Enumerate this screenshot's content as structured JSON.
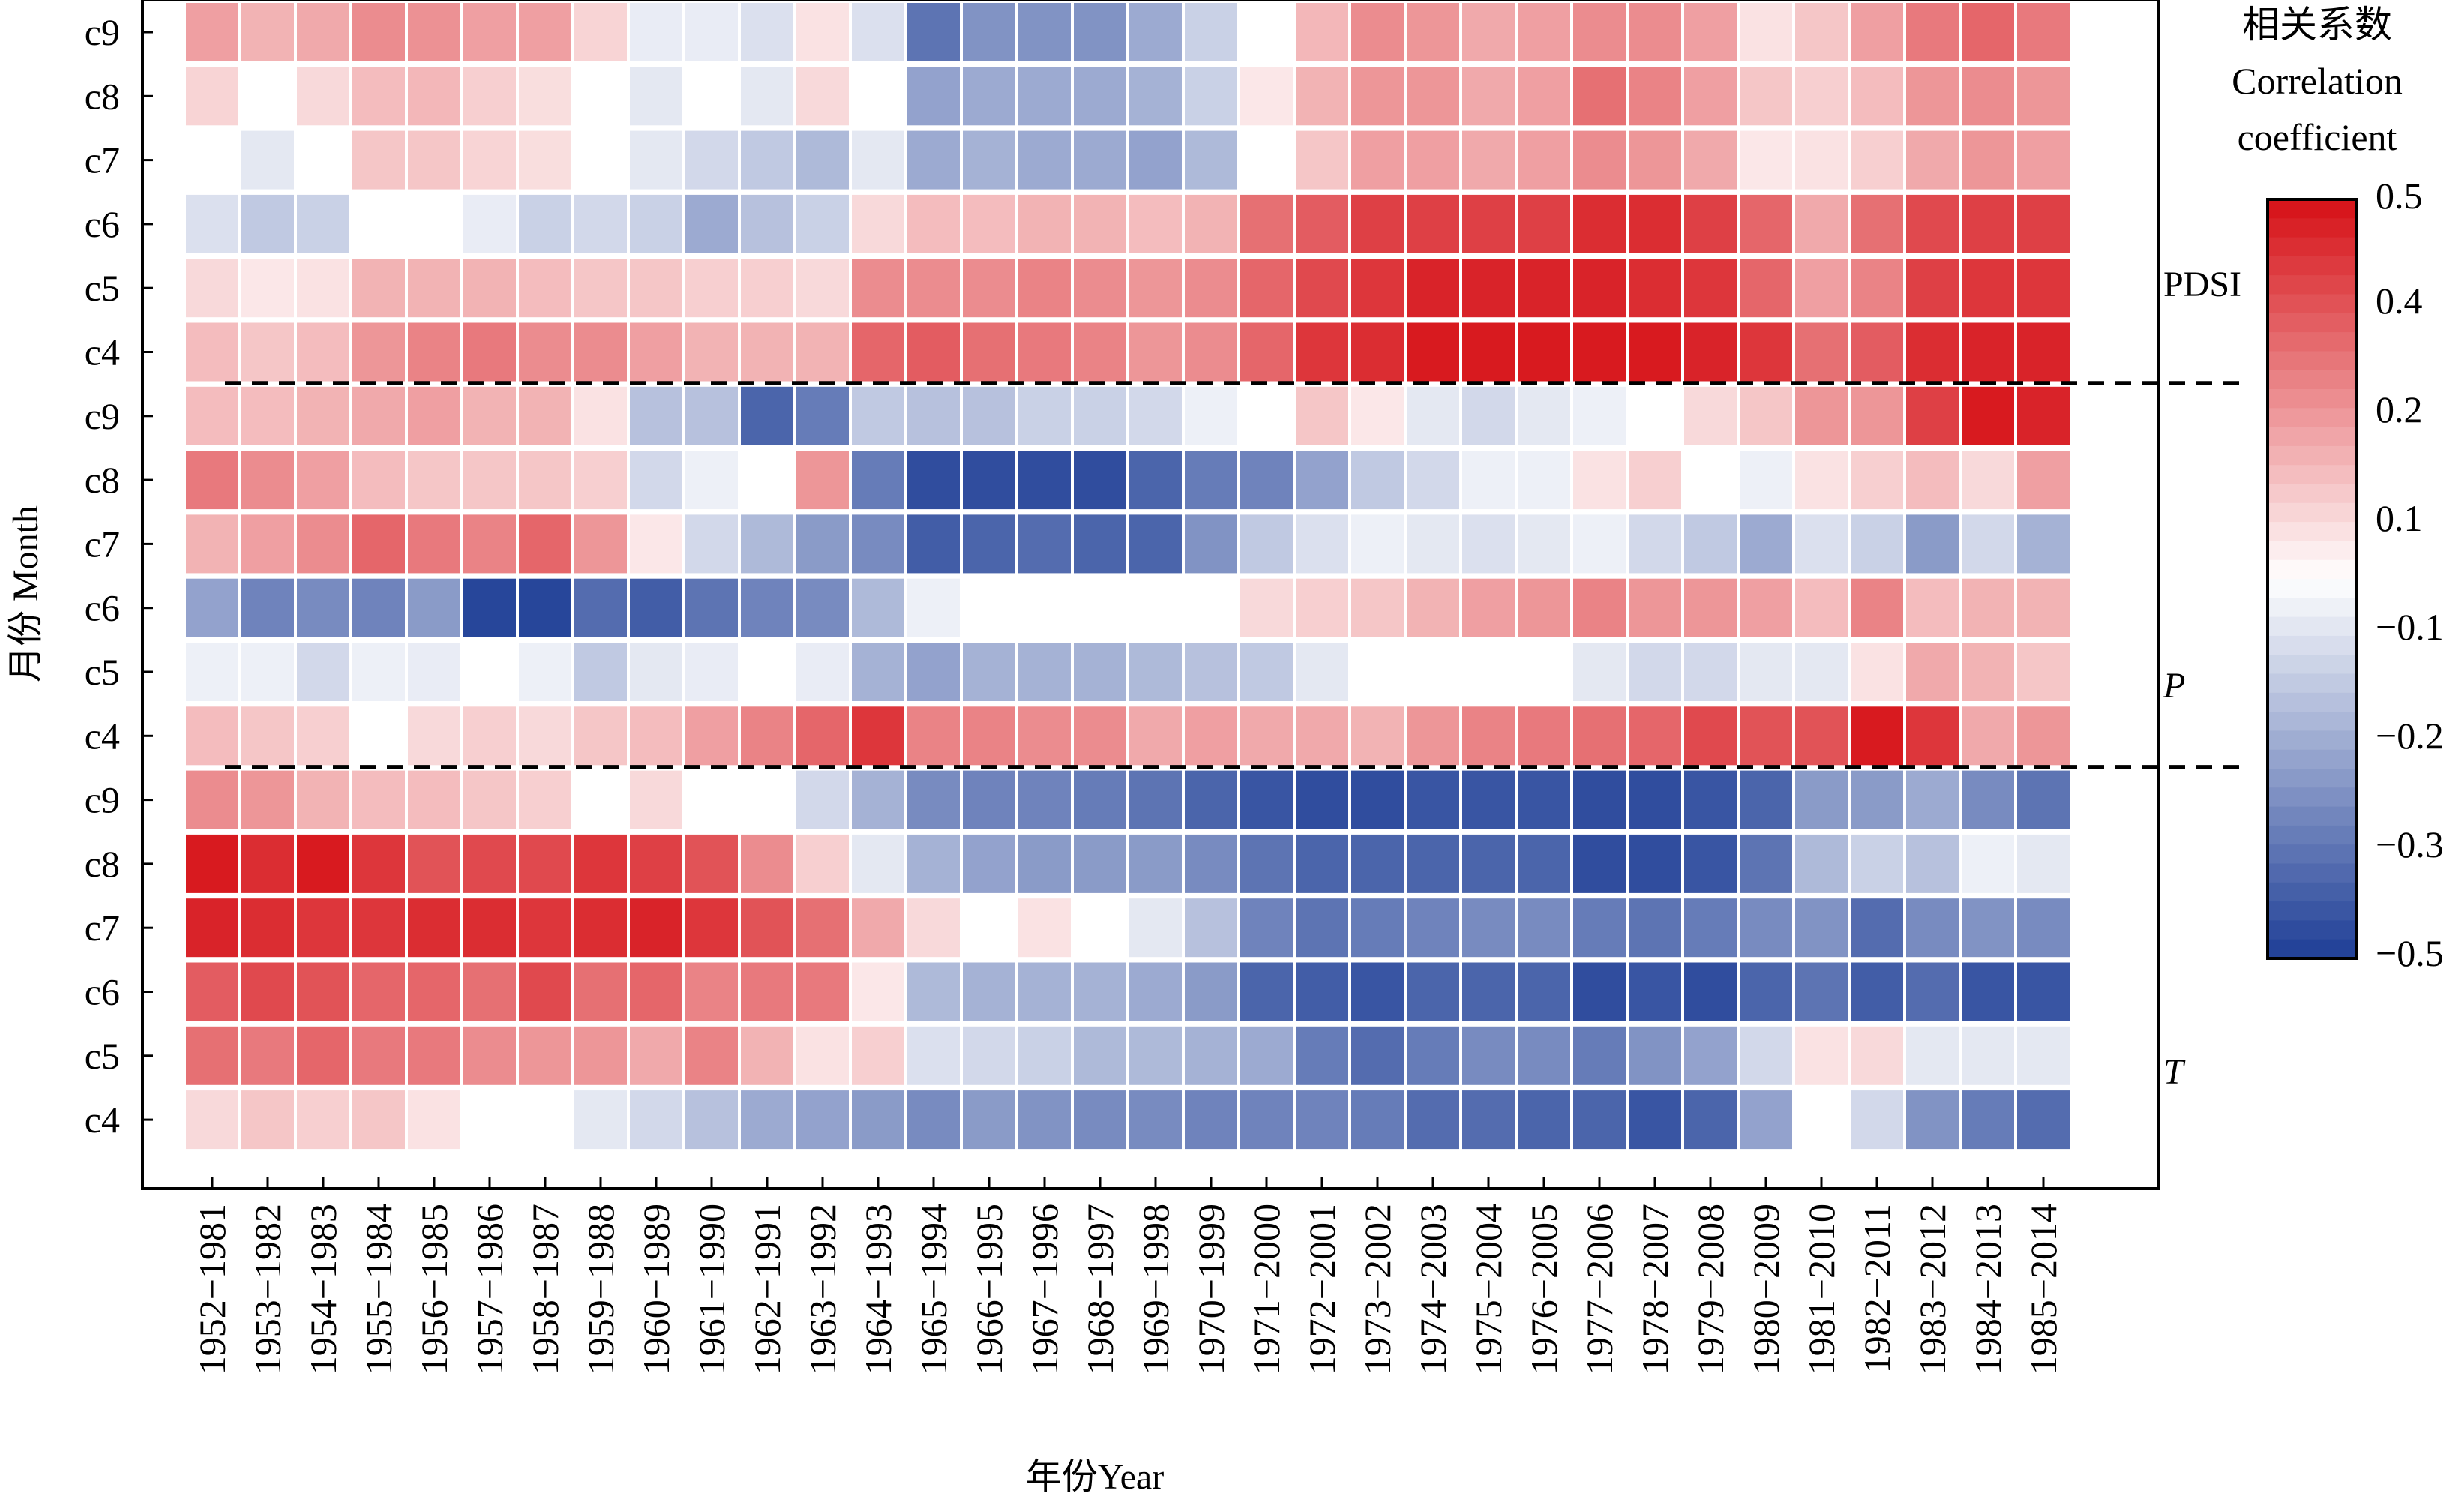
{
  "chart_data": {
    "type": "heatmap",
    "xlabel": "年份Year",
    "ylabel": "月份 Month",
    "colorbar": {
      "title_lines": [
        "相关系数",
        "Correlation",
        "coefficient"
      ],
      "ticks": [
        "0.5",
        "0.4",
        "0.2",
        "0.1",
        "−0.1",
        "−0.2",
        "−0.3",
        "−0.5"
      ],
      "range": [
        -0.5,
        0.5
      ]
    },
    "x_categories": [
      "1952−1981",
      "1953−1982",
      "1954−1983",
      "1955−1984",
      "1956−1985",
      "1957−1986",
      "1958−1987",
      "1959−1988",
      "1960−1989",
      "1961−1990",
      "1962−1991",
      "1963−1992",
      "1964−1993",
      "1965−1994",
      "1966−1995",
      "1967−1996",
      "1968−1997",
      "1969−1998",
      "1970−1999",
      "1971−2000",
      "1972−2001",
      "1973−2002",
      "1974−2003",
      "1975−2004",
      "1976−2005",
      "1977−2006",
      "1978−2007",
      "1979−2008",
      "1980−2009",
      "1981−2010",
      "1982−2011",
      "1983−2012",
      "1984−2013",
      "1985−2014"
    ],
    "groups": [
      {
        "label": "PDSI",
        "rows": [
          {
            "month": "c9",
            "values": [
              0.2,
              0.16,
              0.18,
              0.24,
              0.23,
              0.2,
              0.2,
              0.09,
              -0.05,
              -0.05,
              -0.08,
              0.06,
              -0.08,
              -0.36,
              -0.28,
              -0.28,
              -0.28,
              -0.22,
              -0.12,
              0.0,
              0.15,
              0.24,
              0.22,
              0.18,
              0.2,
              0.24,
              0.24,
              0.2,
              0.06,
              0.12,
              0.2,
              0.28,
              0.32,
              0.28
            ]
          },
          {
            "month": "c8",
            "values": [
              0.09,
              0.0,
              0.08,
              0.14,
              0.15,
              0.1,
              0.07,
              0.0,
              -0.06,
              0.0,
              -0.06,
              0.08,
              0.0,
              -0.24,
              -0.22,
              -0.22,
              -0.22,
              -0.2,
              -0.12,
              0.05,
              0.16,
              0.22,
              0.22,
              0.18,
              0.2,
              0.3,
              0.26,
              0.2,
              0.12,
              0.1,
              0.14,
              0.22,
              0.24,
              0.22
            ]
          },
          {
            "month": "c7",
            "values": [
              0.0,
              -0.06,
              0.0,
              0.12,
              0.12,
              0.09,
              0.07,
              0.0,
              -0.06,
              -0.1,
              -0.14,
              -0.18,
              -0.06,
              -0.22,
              -0.2,
              -0.22,
              -0.22,
              -0.24,
              -0.18,
              0.0,
              0.12,
              0.2,
              0.2,
              0.18,
              0.2,
              0.24,
              0.22,
              0.18,
              0.05,
              0.06,
              0.1,
              0.18,
              0.22,
              0.2
            ]
          },
          {
            "month": "c6",
            "values": [
              -0.08,
              -0.14,
              -0.12,
              0.0,
              0.0,
              -0.05,
              -0.12,
              -0.1,
              -0.12,
              -0.22,
              -0.16,
              -0.12,
              0.08,
              0.14,
              0.14,
              0.16,
              0.16,
              0.14,
              0.16,
              0.3,
              0.34,
              0.4,
              0.4,
              0.4,
              0.4,
              0.44,
              0.44,
              0.4,
              0.32,
              0.18,
              0.3,
              0.38,
              0.4,
              0.4
            ]
          },
          {
            "month": "c5",
            "values": [
              0.08,
              0.05,
              0.06,
              0.16,
              0.16,
              0.16,
              0.14,
              0.12,
              0.12,
              0.1,
              0.1,
              0.08,
              0.24,
              0.24,
              0.24,
              0.26,
              0.24,
              0.22,
              0.24,
              0.32,
              0.38,
              0.42,
              0.46,
              0.46,
              0.46,
              0.46,
              0.44,
              0.42,
              0.32,
              0.2,
              0.26,
              0.4,
              0.42,
              0.42
            ]
          },
          {
            "month": "c4",
            "values": [
              0.14,
              0.12,
              0.14,
              0.22,
              0.26,
              0.28,
              0.24,
              0.24,
              0.2,
              0.16,
              0.16,
              0.16,
              0.32,
              0.34,
              0.3,
              0.28,
              0.26,
              0.22,
              0.24,
              0.32,
              0.42,
              0.44,
              0.48,
              0.48,
              0.48,
              0.48,
              0.48,
              0.46,
              0.42,
              0.3,
              0.34,
              0.44,
              0.46,
              0.46
            ]
          }
        ]
      },
      {
        "label": "P",
        "rows": [
          {
            "month": "c9",
            "values": [
              0.14,
              0.14,
              0.16,
              0.18,
              0.2,
              0.16,
              0.16,
              0.06,
              -0.16,
              -0.16,
              -0.4,
              -0.34,
              -0.14,
              -0.16,
              -0.16,
              -0.12,
              -0.12,
              -0.1,
              -0.04,
              0.0,
              0.12,
              0.05,
              -0.06,
              -0.1,
              -0.06,
              -0.04,
              0.0,
              0.08,
              0.12,
              0.22,
              0.22,
              0.4,
              0.48,
              0.46
            ]
          },
          {
            "month": "c8",
            "values": [
              0.28,
              0.24,
              0.2,
              0.14,
              0.12,
              0.12,
              0.12,
              0.1,
              -0.1,
              -0.04,
              0.0,
              0.22,
              -0.34,
              -0.46,
              -0.46,
              -0.46,
              -0.46,
              -0.4,
              -0.34,
              -0.32,
              -0.24,
              -0.14,
              -0.1,
              -0.04,
              -0.04,
              0.06,
              0.1,
              0.0,
              -0.04,
              0.06,
              0.1,
              0.14,
              0.08,
              0.2
            ]
          },
          {
            "month": "c7",
            "values": [
              0.16,
              0.2,
              0.24,
              0.32,
              0.28,
              0.26,
              0.32,
              0.22,
              0.05,
              -0.1,
              -0.18,
              -0.26,
              -0.3,
              -0.42,
              -0.4,
              -0.38,
              -0.4,
              -0.4,
              -0.28,
              -0.14,
              -0.08,
              -0.04,
              -0.06,
              -0.08,
              -0.06,
              -0.04,
              -0.1,
              -0.14,
              -0.22,
              -0.08,
              -0.12,
              -0.26,
              -0.1,
              -0.2
            ]
          },
          {
            "month": "c6",
            "values": [
              -0.24,
              -0.32,
              -0.3,
              -0.32,
              -0.26,
              -0.48,
              -0.48,
              -0.38,
              -0.42,
              -0.36,
              -0.32,
              -0.3,
              -0.18,
              -0.04,
              0.0,
              0.0,
              0.0,
              0.0,
              0.0,
              0.08,
              0.1,
              0.12,
              0.16,
              0.2,
              0.22,
              0.26,
              0.22,
              0.22,
              0.2,
              0.14,
              0.26,
              0.14,
              0.16,
              0.16
            ]
          },
          {
            "month": "c5",
            "values": [
              -0.04,
              -0.04,
              -0.1,
              -0.04,
              -0.05,
              0.0,
              -0.04,
              -0.14,
              -0.06,
              -0.05,
              0.0,
              -0.05,
              -0.2,
              -0.24,
              -0.2,
              -0.2,
              -0.2,
              -0.18,
              -0.16,
              -0.14,
              -0.06,
              0.0,
              0.0,
              0.0,
              0.0,
              -0.06,
              -0.1,
              -0.1,
              -0.06,
              -0.06,
              0.06,
              0.18,
              0.16,
              0.12
            ]
          },
          {
            "month": "c4",
            "values": [
              0.14,
              0.12,
              0.1,
              0.0,
              0.08,
              0.1,
              0.08,
              0.12,
              0.14,
              0.2,
              0.26,
              0.32,
              0.42,
              0.26,
              0.26,
              0.24,
              0.24,
              0.18,
              0.2,
              0.18,
              0.18,
              0.16,
              0.22,
              0.26,
              0.28,
              0.3,
              0.32,
              0.38,
              0.36,
              0.36,
              0.48,
              0.42,
              0.18,
              0.22
            ]
          }
        ]
      },
      {
        "label": "T",
        "rows": [
          {
            "month": "c9",
            "values": [
              0.24,
              0.22,
              0.16,
              0.14,
              0.14,
              0.12,
              0.1,
              0.0,
              0.08,
              0.0,
              0.0,
              -0.1,
              -0.2,
              -0.3,
              -0.32,
              -0.32,
              -0.34,
              -0.36,
              -0.4,
              -0.44,
              -0.46,
              -0.46,
              -0.44,
              -0.44,
              -0.44,
              -0.46,
              -0.46,
              -0.44,
              -0.4,
              -0.26,
              -0.26,
              -0.22,
              -0.3,
              -0.36
            ]
          },
          {
            "month": "c8",
            "values": [
              0.48,
              0.44,
              0.48,
              0.42,
              0.36,
              0.38,
              0.38,
              0.42,
              0.4,
              0.36,
              0.24,
              0.1,
              -0.06,
              -0.2,
              -0.24,
              -0.26,
              -0.26,
              -0.26,
              -0.3,
              -0.36,
              -0.4,
              -0.4,
              -0.4,
              -0.4,
              -0.4,
              -0.46,
              -0.46,
              -0.44,
              -0.36,
              -0.18,
              -0.12,
              -0.16,
              -0.04,
              -0.06
            ]
          },
          {
            "month": "c7",
            "values": [
              0.46,
              0.44,
              0.42,
              0.42,
              0.44,
              0.44,
              0.42,
              0.44,
              0.46,
              0.42,
              0.36,
              0.3,
              0.18,
              0.08,
              0.0,
              0.06,
              0.0,
              -0.06,
              -0.16,
              -0.32,
              -0.36,
              -0.34,
              -0.32,
              -0.3,
              -0.3,
              -0.34,
              -0.36,
              -0.34,
              -0.3,
              -0.28,
              -0.38,
              -0.3,
              -0.28,
              -0.3
            ]
          },
          {
            "month": "c6",
            "values": [
              0.34,
              0.38,
              0.36,
              0.32,
              0.32,
              0.3,
              0.38,
              0.3,
              0.32,
              0.26,
              0.28,
              0.28,
              0.05,
              -0.18,
              -0.2,
              -0.2,
              -0.2,
              -0.22,
              -0.26,
              -0.4,
              -0.42,
              -0.44,
              -0.4,
              -0.4,
              -0.4,
              -0.46,
              -0.44,
              -0.46,
              -0.4,
              -0.36,
              -0.42,
              -0.38,
              -0.44,
              -0.44
            ]
          },
          {
            "month": "c5",
            "values": [
              0.3,
              0.28,
              0.32,
              0.28,
              0.28,
              0.24,
              0.22,
              0.22,
              0.18,
              0.26,
              0.16,
              0.06,
              0.1,
              -0.08,
              -0.1,
              -0.12,
              -0.18,
              -0.18,
              -0.2,
              -0.22,
              -0.34,
              -0.38,
              -0.34,
              -0.3,
              -0.3,
              -0.34,
              -0.28,
              -0.24,
              -0.1,
              0.06,
              0.08,
              -0.06,
              -0.06,
              -0.06
            ]
          },
          {
            "month": "c4",
            "values": [
              0.08,
              0.12,
              0.1,
              0.12,
              0.06,
              0.0,
              0.0,
              -0.06,
              -0.1,
              -0.16,
              -0.22,
              -0.24,
              -0.26,
              -0.3,
              -0.26,
              -0.28,
              -0.3,
              -0.3,
              -0.32,
              -0.32,
              -0.32,
              -0.34,
              -0.38,
              -0.38,
              -0.4,
              -0.4,
              -0.44,
              -0.4,
              -0.24,
              0.0,
              -0.1,
              -0.28,
              -0.34,
              -0.38
            ]
          }
        ]
      }
    ]
  }
}
